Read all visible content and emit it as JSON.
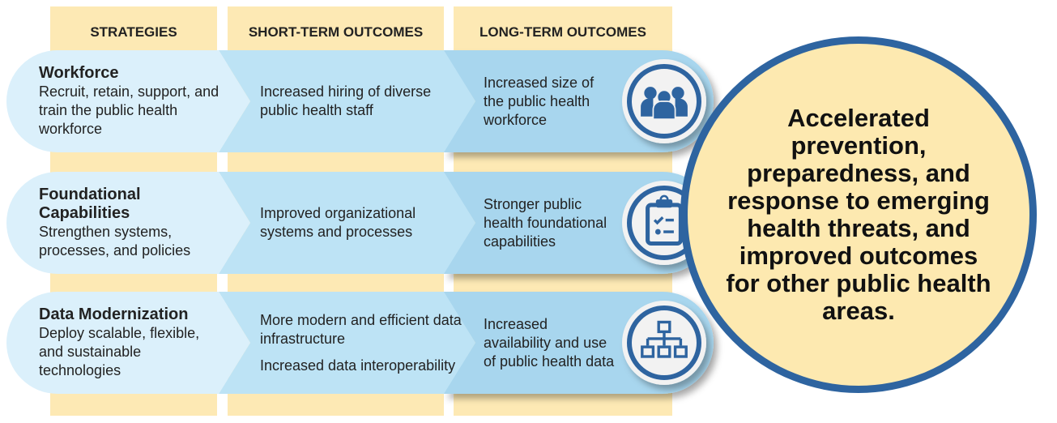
{
  "headers": [
    "STRATEGIES",
    "SHORT-TERM OUTCOMES",
    "LONG-TERM OUTCOMES"
  ],
  "rows": [
    {
      "strategy_title": "Workforce",
      "strategy_text": "Recruit, retain, support, and train the public health workforce",
      "short_term": [
        "Increased hiring of diverse public health staff"
      ],
      "long_term": "Increased size of the public health workforce",
      "icon": "people-group-icon"
    },
    {
      "strategy_title": "Foundational Capabilities",
      "strategy_text": "Strengthen systems, processes, and policies",
      "short_term": [
        "Improved organizational systems and processes"
      ],
      "long_term": "Stronger public health foundational capabilities",
      "icon": "clipboard-checklist-icon"
    },
    {
      "strategy_title": "Data Modernization",
      "strategy_text": "Deploy scalable, flexible, and sustainable technologies",
      "short_term": [
        "More modern and efficient data infrastructure",
        "Increased data interoperability"
      ],
      "long_term": "Increased availability and use of public health data",
      "icon": "network-hierarchy-icon"
    }
  ],
  "impact": "Accelerated prevention, preparedness, and response to emerging health threats, and improved outcomes for other public health areas.",
  "colors": {
    "header": "#fde9b4",
    "strategy": "#dbf0fb",
    "short_term": "#bde3f5",
    "long_term": "#a8d6ee",
    "accent": "#2e64a0",
    "impact_fill": "#fde9b0"
  }
}
